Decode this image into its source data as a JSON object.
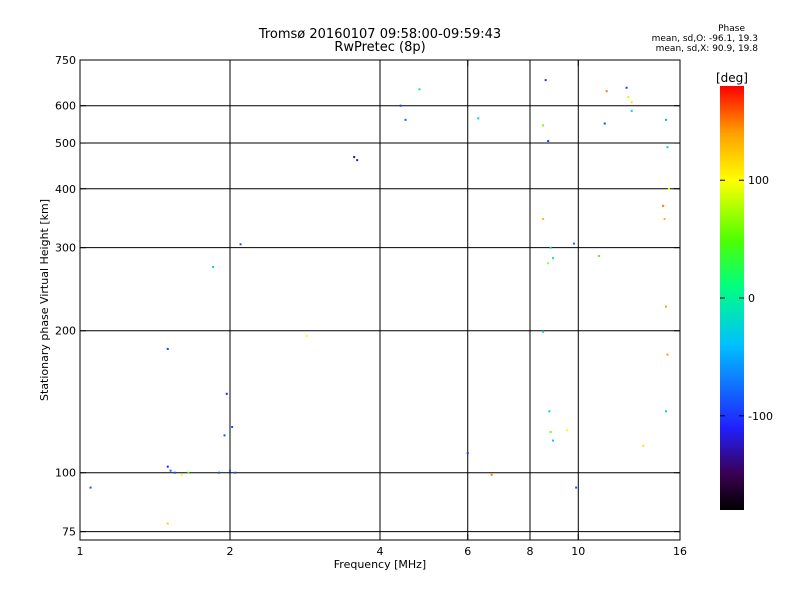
{
  "chart_data": {
    "type": "scatter",
    "title": "Tromsø 20160107 09:58:00-09:59:43",
    "subtitle": "RwPretec (8p)",
    "xlabel": "Frequency [MHz]",
    "ylabel": "Stationary phase Virtual Height [km]",
    "x_scale": "log",
    "y_scale": "log",
    "xlim": [
      1,
      16
    ],
    "ylim": [
      72,
      750
    ],
    "x_ticks": [
      1,
      2,
      4,
      6,
      8,
      10,
      16
    ],
    "y_ticks": [
      75,
      100,
      200,
      300,
      400,
      500,
      600,
      750
    ],
    "grid": true,
    "colorbar": {
      "label": "[deg]",
      "range": [
        -180,
        180
      ],
      "ticks": [
        100,
        0,
        -100
      ],
      "colors": [
        "#000000",
        "#3a0050",
        "#2020ff",
        "#00c0ff",
        "#00ff80",
        "#50ff00",
        "#ffff00",
        "#ffa000",
        "#ff0000"
      ]
    },
    "stats": {
      "heading": "Phase",
      "line_o": "mean, sd,O: -96.1, 19.3",
      "line_x": "mean, sd,X:  90.9, 19.8"
    },
    "series": [
      {
        "points": [
          [
            1.05,
            93,
            -90
          ],
          [
            1.5,
            183,
            -100
          ],
          [
            1.5,
            103,
            -110
          ],
          [
            1.52,
            101,
            -80
          ],
          [
            1.55,
            100,
            -90
          ],
          [
            1.6,
            99,
            100
          ],
          [
            1.65,
            100,
            40
          ],
          [
            1.9,
            100,
            -90
          ],
          [
            1.95,
            120,
            -90
          ],
          [
            1.97,
            147,
            -110
          ],
          [
            2.0,
            101,
            -90
          ],
          [
            2.02,
            125,
            -90
          ],
          [
            2.05,
            100,
            -90
          ],
          [
            2.1,
            305,
            -90
          ],
          [
            1.85,
            273,
            -20
          ],
          [
            3.55,
            467,
            -130
          ],
          [
            3.6,
            460,
            -120
          ],
          [
            4.4,
            600,
            -100
          ],
          [
            4.5,
            560,
            -80
          ],
          [
            4.8,
            650,
            -10
          ],
          [
            6.3,
            564,
            -40
          ],
          [
            6.0,
            110,
            -100
          ],
          [
            6.7,
            99,
            150
          ],
          [
            8.5,
            545,
            60
          ],
          [
            8.6,
            680,
            -100
          ],
          [
            8.7,
            505,
            -100
          ],
          [
            8.5,
            199,
            -40
          ],
          [
            8.8,
            300,
            -20
          ],
          [
            8.9,
            285,
            -10
          ],
          [
            8.7,
            278,
            70
          ],
          [
            8.75,
            135,
            -20
          ],
          [
            8.8,
            122,
            60
          ],
          [
            8.9,
            117,
            -40
          ],
          [
            9.5,
            123,
            100
          ],
          [
            9.8,
            306,
            -80
          ],
          [
            9.9,
            93,
            -90
          ],
          [
            11.3,
            550,
            -90
          ],
          [
            11.4,
            644,
            150
          ],
          [
            12.5,
            655,
            -100
          ],
          [
            12.6,
            626,
            90
          ],
          [
            12.8,
            585,
            -20
          ],
          [
            13.5,
            114,
            110
          ],
          [
            15.0,
            560,
            -50
          ],
          [
            15.1,
            490,
            -20
          ],
          [
            15.2,
            400,
            100
          ],
          [
            14.9,
            345,
            130
          ],
          [
            15.0,
            225,
            140
          ],
          [
            15.1,
            178,
            140
          ],
          [
            15.0,
            135,
            -20
          ],
          [
            12.8,
            610,
            110
          ],
          [
            14.8,
            368,
            150
          ],
          [
            11.0,
            288,
            50
          ],
          [
            8.5,
            345,
            130
          ],
          [
            1.5,
            78,
            120
          ],
          [
            2.85,
            195,
            100
          ]
        ]
      }
    ]
  }
}
